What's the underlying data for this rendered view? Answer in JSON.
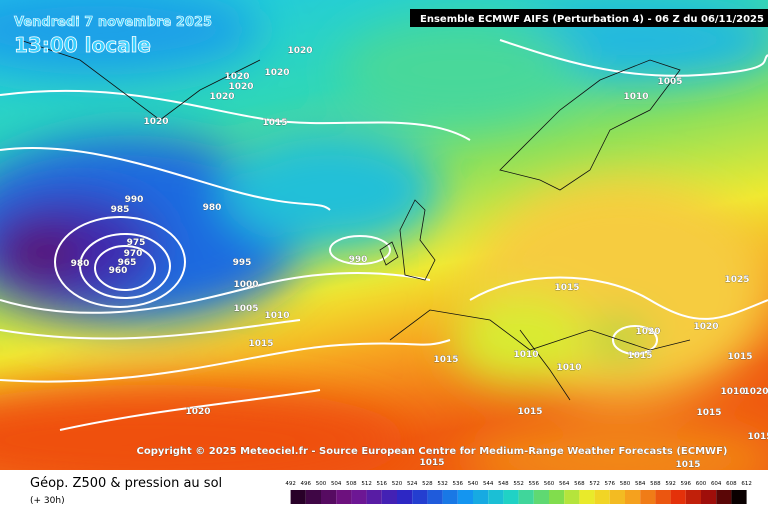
{
  "header": {
    "date": "Vendredi 7 novembre 2025",
    "time": "13:00 locale",
    "model": "Ensemble ECMWF AIFS  (Perturbation 4)  -  06 Z du 06/11/2025"
  },
  "copyright": "Copyright © 2025 Meteociel.fr - Source European Centre for Medium-Range Weather Forecasts (ECMWF)",
  "footer": {
    "title": "Géop. Z500 & pression au sol",
    "lead": "(+ 30h)"
  },
  "isobar_labels": [
    "1020",
    "1020",
    "1020",
    "1020",
    "1020",
    "1020",
    "1015",
    "1005",
    "1010",
    "990",
    "985",
    "980",
    "975",
    "970",
    "965",
    "960",
    "980",
    "995",
    "990",
    "1000",
    "1005",
    "1010",
    "1015",
    "1015",
    "1020",
    "1020",
    "1025",
    "1015",
    "1010",
    "1010",
    "1015",
    "1015",
    "1015",
    "1015",
    "1020",
    "1015",
    "1015",
    "1010",
    "1020",
    "1015"
  ],
  "colorbar": {
    "labels": [
      492,
      496,
      500,
      504,
      508,
      512,
      516,
      520,
      524,
      528,
      532,
      536,
      540,
      544,
      548,
      552,
      556,
      560,
      564,
      568,
      572,
      576,
      580,
      584,
      588,
      592,
      596,
      600,
      604,
      608,
      612
    ]
  }
}
